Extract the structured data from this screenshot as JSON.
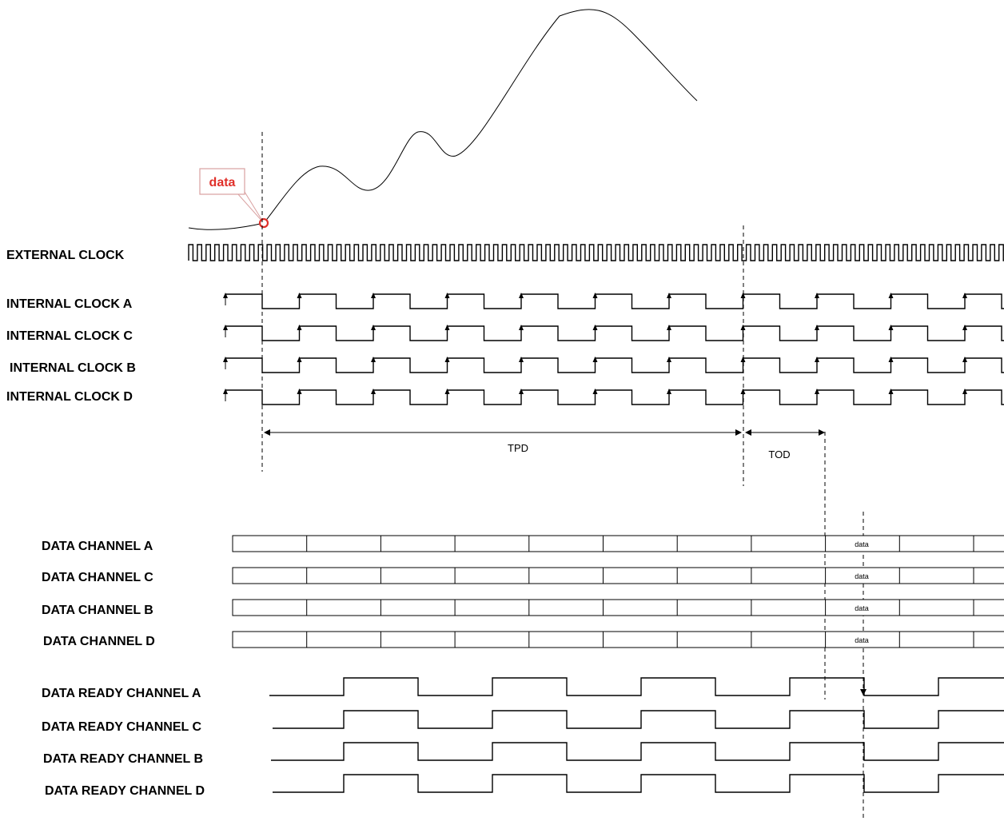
{
  "annotation": {
    "label": "data",
    "color": "#e0302a"
  },
  "signals": {
    "external_clock": "EXTERNAL CLOCK",
    "internal_clocks": [
      "INTERNAL CLOCK A",
      "INTERNAL CLOCK C",
      "INTERNAL CLOCK B",
      "INTERNAL CLOCK D"
    ],
    "data_channels": [
      "DATA  CHANNEL A",
      "DATA  CHANNEL C",
      "DATA  CHANNEL B",
      "DATA  CHANNEL D"
    ],
    "data_ready": [
      "DATA  READY CHANNEL A",
      "DATA  READY CHANNEL C",
      "DATA  READY CHANNEL B",
      "DATA  READY CHANNEL D"
    ]
  },
  "data_cell_label": "data",
  "intervals": {
    "tpd": "TPD",
    "tod": "TOD"
  }
}
